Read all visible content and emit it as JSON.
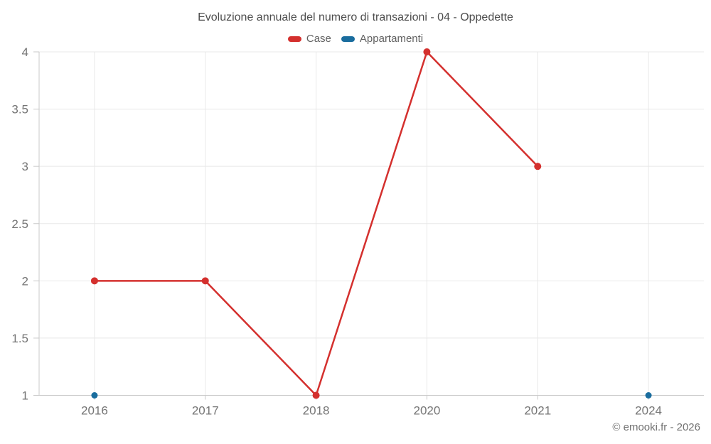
{
  "chart": {
    "title": "Evoluzione annuale del numero di transazioni - 04 - Oppedette",
    "footer": "© emooki.fr - 2026"
  },
  "style": {
    "grid_color": "#e8e8e8",
    "axis_color": "#c9c9c9",
    "tick_label_color": "#757575",
    "title_color": "#4d4d4d",
    "legend_text_color": "#616161",
    "footer_color": "#717171",
    "background": "#ffffff"
  },
  "chart_data": {
    "type": "line",
    "title": "Evoluzione annuale del numero di transazioni - 04 - Oppedette",
    "categories": [
      "2016",
      "2017",
      "2018",
      "2020",
      "2021",
      "2024"
    ],
    "series": [
      {
        "name": "Case",
        "color": "#d4302e",
        "values": [
          2,
          2,
          1,
          4,
          3,
          null
        ],
        "marker_radius": 5,
        "line_width": 2.5
      },
      {
        "name": "Appartamenti",
        "color": "#1a6d9e",
        "values": [
          1,
          null,
          null,
          null,
          null,
          1
        ],
        "marker_radius": 4.5,
        "line_width": 2.5
      }
    ],
    "xlabel": "",
    "ylabel": "",
    "ylim": [
      1,
      4
    ],
    "yticks": [
      1,
      1.5,
      2,
      2.5,
      3,
      3.5,
      4
    ],
    "grid": true,
    "legend_position": "top"
  }
}
